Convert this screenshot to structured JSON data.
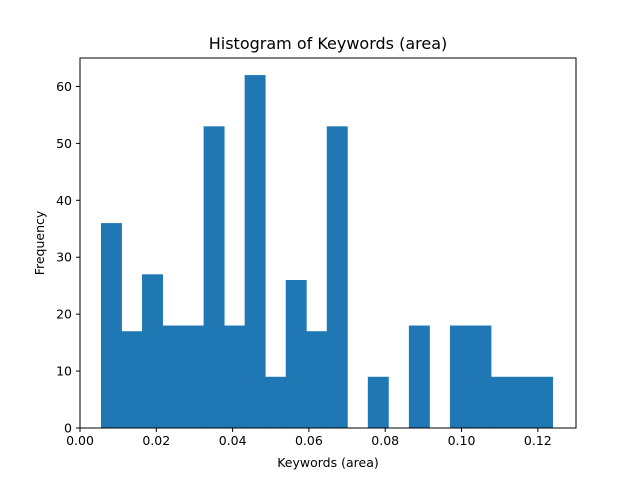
{
  "chart_data": {
    "type": "bar",
    "title": "Histogram of Keywords (area)",
    "xlabel": "Keywords (area)",
    "ylabel": "Frequency",
    "xlim": [
      0.0,
      0.13
    ],
    "ylim": [
      0,
      65
    ],
    "xticks": [
      0.0,
      0.02,
      0.04,
      0.06,
      0.08,
      0.1,
      0.12
    ],
    "xtick_labels": [
      "0.00",
      "0.02",
      "0.04",
      "0.06",
      "0.08",
      "0.10",
      "0.12"
    ],
    "yticks": [
      0,
      10,
      20,
      30,
      40,
      50,
      60
    ],
    "ytick_labels": [
      "0",
      "10",
      "20",
      "30",
      "40",
      "50",
      "60"
    ],
    "bin_edges": [
      0.0055,
      0.01088,
      0.01626,
      0.02164,
      0.02702,
      0.0324,
      0.03778,
      0.04316,
      0.04854,
      0.05392,
      0.0593,
      0.06468,
      0.07006,
      0.07544,
      0.08082,
      0.0862,
      0.09158,
      0.09696,
      0.10234,
      0.10772,
      0.1131,
      0.11848,
      0.12386
    ],
    "values": [
      36,
      17,
      27,
      18,
      18,
      53,
      18,
      62,
      9,
      26,
      17,
      53,
      0,
      9,
      0,
      18,
      0,
      18,
      18,
      9,
      9,
      9
    ],
    "bar_color": "#1f77b4",
    "grid": false
  }
}
